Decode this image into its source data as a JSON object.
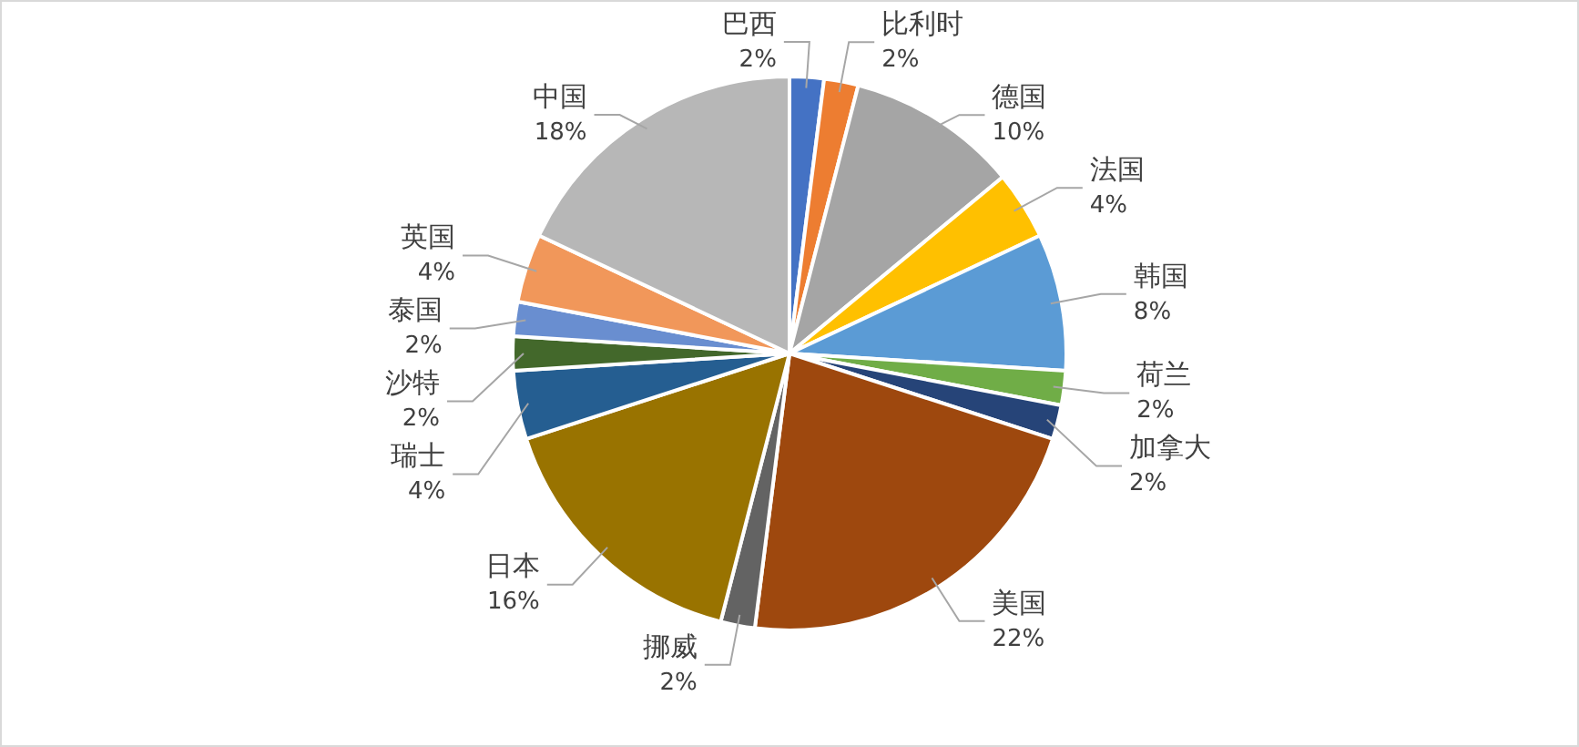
{
  "chart_data": {
    "type": "pie",
    "categories": [
      "巴西",
      "比利时",
      "德国",
      "法国",
      "韩国",
      "荷兰",
      "加拿大",
      "美国",
      "挪威",
      "日本",
      "瑞士",
      "沙特",
      "泰国",
      "英国",
      "中国"
    ],
    "values": [
      2,
      2,
      10,
      4,
      8,
      2,
      2,
      22,
      2,
      16,
      4,
      2,
      2,
      4,
      18
    ],
    "value_labels": [
      "2%",
      "2%",
      "10%",
      "4%",
      "8%",
      "2%",
      "2%",
      "22%",
      "2%",
      "16%",
      "4%",
      "2%",
      "2%",
      "4%",
      "18%"
    ],
    "colors": [
      "#4472c4",
      "#ed7d31",
      "#a5a5a5",
      "#ffc000",
      "#5b9bd5",
      "#70ad47",
      "#264478",
      "#9e480e",
      "#636363",
      "#997300",
      "#255e91",
      "#43682b",
      "#698ed0",
      "#f1975a",
      "#b7b7b7"
    ],
    "legend": false
  }
}
